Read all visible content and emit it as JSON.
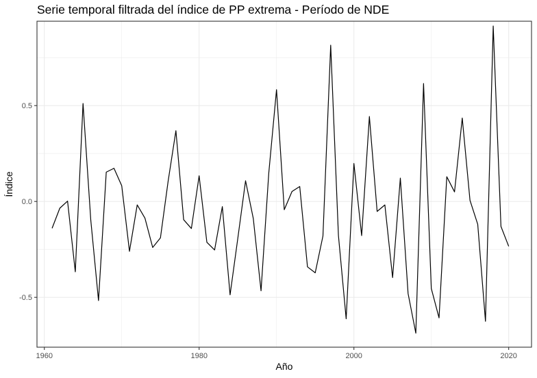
{
  "chart_data": {
    "type": "line",
    "title": "Serie temporal filtrada del índice de PP extrema - Período de NDE",
    "xlabel": "Año",
    "ylabel": "Índice",
    "xlim": [
      1959.05,
      2022.95
    ],
    "ylim": [
      -0.76,
      0.94
    ],
    "x_ticks": [
      1960,
      1980,
      2000,
      2020
    ],
    "x_tick_labels": [
      "1960",
      "1980",
      "2000",
      "2020"
    ],
    "y_ticks": [
      -0.5,
      0.0,
      0.5
    ],
    "y_tick_labels": [
      "-0.5",
      "0.0",
      "0.5"
    ],
    "grid": true,
    "theme": "bw",
    "line_color": "#000000",
    "series": [
      {
        "x": [
          1961,
          1962,
          1963,
          1964,
          1965,
          1966,
          1967,
          1968,
          1969,
          1970,
          1971,
          1972,
          1973,
          1974,
          1975,
          1976,
          1977,
          1978,
          1979,
          1980,
          1981,
          1982,
          1983,
          1984,
          1985,
          1986,
          1987,
          1988,
          1989,
          1990,
          1991,
          1992,
          1993,
          1994,
          1995,
          1996,
          1997,
          1998,
          1999,
          2000,
          2001,
          2002,
          2003,
          2004,
          2005,
          2006,
          2007,
          2008,
          2009,
          2010,
          2011,
          2012,
          2013,
          2014,
          2015,
          2016,
          2017,
          2018,
          2019,
          2020
        ],
        "values": [
          -0.14,
          -0.035,
          0.002,
          -0.367,
          0.511,
          -0.097,
          -0.517,
          0.153,
          0.173,
          0.082,
          -0.26,
          -0.018,
          -0.087,
          -0.24,
          -0.19,
          0.107,
          0.369,
          -0.095,
          -0.141,
          0.134,
          -0.213,
          -0.253,
          -0.027,
          -0.487,
          -0.192,
          0.108,
          -0.089,
          -0.466,
          0.148,
          0.583,
          -0.043,
          0.052,
          0.078,
          -0.341,
          -0.372,
          -0.18,
          0.815,
          -0.177,
          -0.612,
          0.198,
          -0.178,
          0.443,
          -0.052,
          -0.018,
          -0.397,
          0.122,
          -0.48,
          -0.687,
          0.615,
          -0.454,
          -0.607,
          0.129,
          0.05,
          0.435,
          0.006,
          -0.119,
          -0.625,
          0.915,
          -0.13,
          -0.234
        ]
      }
    ]
  }
}
